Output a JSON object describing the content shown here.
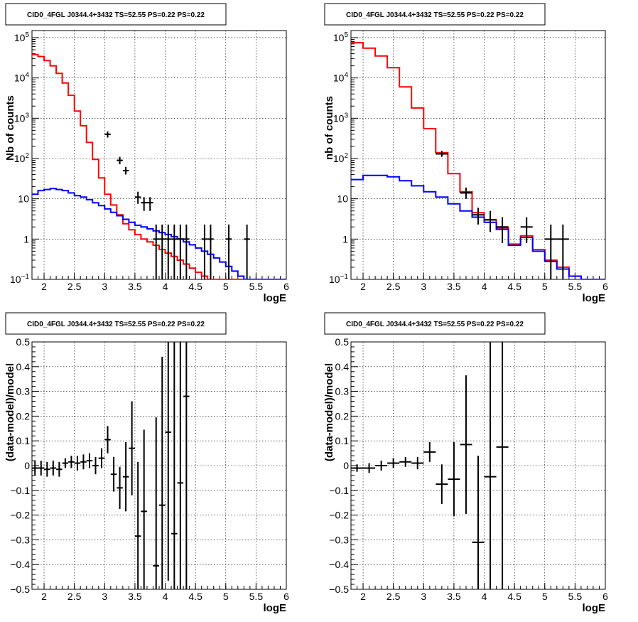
{
  "colors": {
    "data": "#000000",
    "total": "#ff0000",
    "model": "#0000ff",
    "grid": "#000000"
  },
  "chart_data": [
    {
      "type": "line",
      "title": "CID0_4FGL J0344.4+3432 TS=52.55 PS=0.22 PS=0.22",
      "xlabel": "logE",
      "ylabel": "Nb of counts",
      "xlim": [
        1.8,
        6
      ],
      "ylim": [
        0.1,
        150000
      ],
      "yscale": "log",
      "grid": true,
      "xticks": [
        "2",
        "2.5",
        "3",
        "3.5",
        "4",
        "4.5",
        "5",
        "5.5",
        "6"
      ],
      "yticks": [
        {
          "base": "10",
          "exp": "−1",
          "value": 0.1
        },
        {
          "base": "1",
          "exp": "",
          "value": 1
        },
        {
          "base": "10",
          "exp": "",
          "value": 10
        },
        {
          "base": "10",
          "exp": "2",
          "value": 100
        },
        {
          "base": "10",
          "exp": "3",
          "value": 1000
        },
        {
          "base": "10",
          "exp": "4",
          "value": 10000
        },
        {
          "base": "10",
          "exp": "5",
          "value": 100000
        }
      ],
      "series": [
        {
          "role": "model-total",
          "color": "red",
          "edges": [
            1.8,
            1.9,
            2.0,
            2.1,
            2.2,
            2.3,
            2.4,
            2.5,
            2.6,
            2.7,
            2.8,
            2.9,
            3.0,
            3.1,
            3.2,
            3.3,
            3.4,
            3.5,
            3.6,
            3.7,
            3.8,
            3.9,
            4.0,
            4.1,
            4.2,
            4.3,
            4.4,
            4.5,
            4.6,
            4.7,
            4.8,
            4.9,
            5.0,
            5.1,
            5.2,
            5.3,
            5.4,
            5.5,
            5.6,
            5.7,
            5.8,
            5.9,
            6.0
          ],
          "values": [
            38000,
            34000,
            27000,
            20000,
            13000,
            7500,
            3700,
            1500,
            650,
            250,
            95,
            33,
            13,
            7,
            4,
            2.4,
            1.7,
            1.3,
            1.0,
            0.85,
            0.7,
            0.55,
            0.45,
            0.37,
            0.3,
            0.24,
            0.19,
            0.15,
            0.12,
            0.1,
            0.1,
            0.1,
            0.1,
            0.1,
            0.1,
            0.1,
            0.1,
            0.1,
            0.1,
            0.1,
            0.1,
            0.1
          ]
        },
        {
          "role": "source-model",
          "color": "blue",
          "edges": [
            1.8,
            1.9,
            2.0,
            2.1,
            2.2,
            2.3,
            2.4,
            2.5,
            2.6,
            2.7,
            2.8,
            2.9,
            3.0,
            3.1,
            3.2,
            3.3,
            3.4,
            3.5,
            3.6,
            3.7,
            3.8,
            3.9,
            4.0,
            4.1,
            4.2,
            4.3,
            4.4,
            4.5,
            4.6,
            4.7,
            4.8,
            4.9,
            5.0,
            5.1,
            5.2,
            5.3,
            5.4,
            5.5,
            5.6,
            5.7,
            5.8,
            5.9,
            6.0
          ],
          "values": [
            13,
            16,
            17,
            18,
            17,
            16,
            14,
            12,
            11,
            9.5,
            8,
            6.8,
            5.6,
            4.6,
            3.8,
            3.1,
            2.6,
            2.2,
            2.0,
            1.8,
            1.6,
            1.45,
            1.3,
            1.15,
            1.0,
            0.85,
            0.72,
            0.6,
            0.5,
            0.42,
            0.34,
            0.27,
            0.21,
            0.16,
            0.12,
            0.1,
            0.1,
            0.1,
            0.1,
            0.1,
            0.1,
            0.1
          ]
        },
        {
          "role": "data",
          "color": "black",
          "points": [
            {
              "x": 3.05,
              "y": 400,
              "lo": 330,
              "hi": 470,
              "xerr": 0.05
            },
            {
              "x": 3.25,
              "y": 90,
              "lo": 72,
              "hi": 110,
              "xerr": 0.05
            },
            {
              "x": 3.35,
              "y": 50,
              "lo": 40,
              "hi": 62,
              "xerr": 0.05
            },
            {
              "x": 3.55,
              "y": 11,
              "lo": 7.5,
              "hi": 15,
              "xerr": 0.05
            },
            {
              "x": 3.65,
              "y": 8,
              "lo": 5,
              "hi": 11,
              "xerr": 0.05
            },
            {
              "x": 3.75,
              "y": 8,
              "lo": 5,
              "hi": 11,
              "xerr": 0.05
            },
            {
              "x": 3.85,
              "y": 1,
              "lo": 0.1,
              "hi": 2.3,
              "xerr": 0.05
            },
            {
              "x": 3.95,
              "y": 1,
              "lo": 0.1,
              "hi": 2.3,
              "xerr": 0.05
            },
            {
              "x": 4.05,
              "y": 1,
              "lo": 0.1,
              "hi": 2.3,
              "xerr": 0.05
            },
            {
              "x": 4.15,
              "y": 1,
              "lo": 0.1,
              "hi": 2.3,
              "xerr": 0.05
            },
            {
              "x": 4.25,
              "y": 1,
              "lo": 0.1,
              "hi": 2.3,
              "xerr": 0.05
            },
            {
              "x": 4.35,
              "y": 1,
              "lo": 0.1,
              "hi": 2.3,
              "xerr": 0.05
            },
            {
              "x": 4.65,
              "y": 1,
              "lo": 0.1,
              "hi": 2.3,
              "xerr": 0.05
            },
            {
              "x": 4.75,
              "y": 1,
              "lo": 0.1,
              "hi": 2.3,
              "xerr": 0.05
            },
            {
              "x": 5.05,
              "y": 1,
              "lo": 0.1,
              "hi": 2.3,
              "xerr": 0.05
            },
            {
              "x": 5.35,
              "y": 1,
              "lo": 0.1,
              "hi": 2.3,
              "xerr": 0.05
            }
          ]
        }
      ]
    },
    {
      "type": "line",
      "title": "CID0_4FGL J0344.4+3432 TS=52.55 PS=0.22 PS=0.22",
      "xlabel": "logE",
      "ylabel": "nb of counts",
      "xlim": [
        1.8,
        6
      ],
      "ylim": [
        0.1,
        150000
      ],
      "yscale": "log",
      "grid": true,
      "xticks": [
        "2",
        "2.5",
        "3",
        "3.5",
        "4",
        "4.5",
        "5",
        "5.5",
        "6"
      ],
      "yticks": [
        {
          "base": "10",
          "exp": "−1",
          "value": 0.1
        },
        {
          "base": "1",
          "exp": "",
          "value": 1
        },
        {
          "base": "10",
          "exp": "",
          "value": 10
        },
        {
          "base": "10",
          "exp": "2",
          "value": 100
        },
        {
          "base": "10",
          "exp": "3",
          "value": 1000
        },
        {
          "base": "10",
          "exp": "4",
          "value": 10000
        },
        {
          "base": "10",
          "exp": "5",
          "value": 100000
        }
      ],
      "series": [
        {
          "role": "model-total",
          "color": "red",
          "edges": [
            1.8,
            2.0,
            2.2,
            2.4,
            2.6,
            2.8,
            3.0,
            3.2,
            3.4,
            3.6,
            3.8,
            4.0,
            4.2,
            4.4,
            4.6,
            4.8,
            5.0,
            5.2,
            5.4,
            5.6,
            5.8,
            6.0
          ],
          "values": [
            75000,
            55000,
            35000,
            18000,
            6000,
            1800,
            550,
            140,
            42,
            15,
            4.5,
            3.0,
            1.9,
            0.75,
            1.2,
            0.55,
            0.3,
            0.2,
            0.12,
            0.1,
            0.1
          ]
        },
        {
          "role": "source-model",
          "color": "blue",
          "edges": [
            1.8,
            2.0,
            2.2,
            2.4,
            2.6,
            2.8,
            3.0,
            3.2,
            3.4,
            3.6,
            3.8,
            4.0,
            4.2,
            4.4,
            4.6,
            4.8,
            5.0,
            5.2,
            5.4,
            5.6,
            5.8,
            6.0
          ],
          "values": [
            30,
            38,
            38,
            35,
            28,
            21,
            15,
            11,
            7.5,
            5,
            3.5,
            2.6,
            1.75,
            0.7,
            1.1,
            0.5,
            0.28,
            0.18,
            0.12,
            0.1,
            0.1
          ]
        },
        {
          "role": "data",
          "color": "black",
          "points": [
            {
              "x": 3.3,
              "y": 130,
              "lo": 110,
              "hi": 155,
              "xerr": 0.1
            },
            {
              "x": 3.7,
              "y": 14,
              "lo": 10,
              "hi": 19,
              "xerr": 0.1
            },
            {
              "x": 3.9,
              "y": 4,
              "lo": 2.3,
              "hi": 6,
              "xerr": 0.1
            },
            {
              "x": 4.1,
              "y": 3,
              "lo": 1.5,
              "hi": 5,
              "xerr": 0.1
            },
            {
              "x": 4.3,
              "y": 2,
              "lo": 0.8,
              "hi": 3.5,
              "xerr": 0.1
            },
            {
              "x": 4.7,
              "y": 2,
              "lo": 0.8,
              "hi": 3.5,
              "xerr": 0.1
            },
            {
              "x": 5.1,
              "y": 1,
              "lo": 0.1,
              "hi": 2.3,
              "xerr": 0.1
            },
            {
              "x": 5.3,
              "y": 1,
              "lo": 0.1,
              "hi": 2.3,
              "xerr": 0.1
            }
          ]
        }
      ]
    },
    {
      "type": "scatter",
      "title": "CID0_4FGL J0344.4+3432 TS=52.55 PS=0.22 PS=0.22",
      "xlabel": "logE",
      "ylabel": "(data-model)/model",
      "xlim": [
        1.8,
        6
      ],
      "ylim": [
        -0.5,
        0.5
      ],
      "grid": true,
      "xticks": [
        "2",
        "2.5",
        "3",
        "3.5",
        "4",
        "4.5",
        "5",
        "5.5",
        "6"
      ],
      "yticks": [
        "−0.5",
        "−0.4",
        "−0.3",
        "−0.2",
        "−0.1",
        "0",
        "0.1",
        "0.2",
        "0.3",
        "0.4",
        "0.5"
      ],
      "points": [
        {
          "x": 1.85,
          "y": -0.01,
          "err": 0.03,
          "xerr": 0.05
        },
        {
          "x": 1.95,
          "y": -0.01,
          "err": 0.03,
          "xerr": 0.05
        },
        {
          "x": 2.05,
          "y": -0.015,
          "err": 0.03,
          "xerr": 0.05
        },
        {
          "x": 2.15,
          "y": -0.01,
          "err": 0.03,
          "xerr": 0.05
        },
        {
          "x": 2.25,
          "y": -0.015,
          "err": 0.03,
          "xerr": 0.05
        },
        {
          "x": 2.35,
          "y": 0.01,
          "err": 0.02,
          "xerr": 0.05
        },
        {
          "x": 2.45,
          "y": 0.015,
          "err": 0.025,
          "xerr": 0.05
        },
        {
          "x": 2.55,
          "y": 0.01,
          "err": 0.03,
          "xerr": 0.05
        },
        {
          "x": 2.65,
          "y": 0.015,
          "err": 0.03,
          "xerr": 0.05
        },
        {
          "x": 2.75,
          "y": 0.02,
          "err": 0.03,
          "xerr": 0.05
        },
        {
          "x": 2.85,
          "y": 0.0,
          "err": 0.035,
          "xerr": 0.05
        },
        {
          "x": 2.95,
          "y": 0.03,
          "err": 0.04,
          "xerr": 0.05
        },
        {
          "x": 3.05,
          "y": 0.105,
          "err": 0.055,
          "xerr": 0.05
        },
        {
          "x": 3.15,
          "y": -0.035,
          "err": 0.07,
          "xerr": 0.05
        },
        {
          "x": 3.25,
          "y": -0.09,
          "err": 0.085,
          "xerr": 0.05
        },
        {
          "x": 3.35,
          "y": -0.045,
          "err": 0.14,
          "xerr": 0.05
        },
        {
          "x": 3.45,
          "y": 0.07,
          "err": 0.19,
          "xerr": 0.05
        },
        {
          "x": 3.55,
          "y": -0.285,
          "err": 0.3,
          "xerr": 0.05
        },
        {
          "x": 3.65,
          "y": -0.185,
          "err": 0.33,
          "xerr": 0.05
        },
        {
          "x": 3.85,
          "y": -0.405,
          "err": 0.6,
          "xerr": 0.05
        },
        {
          "x": 3.95,
          "y": -0.16,
          "err": 0.6,
          "xerr": 0.05
        },
        {
          "x": 4.05,
          "y": 0.135,
          "err": 0.6,
          "xerr": 0.05
        },
        {
          "x": 4.15,
          "y": -0.275,
          "err": 0.8,
          "xerr": 0.05
        },
        {
          "x": 4.25,
          "y": -0.07,
          "err": 0.8,
          "xerr": 0.05
        },
        {
          "x": 4.35,
          "y": 0.28,
          "err": 0.8,
          "xerr": 0.05
        }
      ]
    },
    {
      "type": "scatter",
      "title": "CID0_4FGL J0344.4+3432 TS=52.55 PS=0.22 PS=0.22",
      "xlabel": "logE",
      "ylabel": "(data-model)/model",
      "xlim": [
        1.8,
        6
      ],
      "ylim": [
        -0.5,
        0.5
      ],
      "grid": true,
      "xticks": [
        "2",
        "2.5",
        "3",
        "3.5",
        "4",
        "4.5",
        "5",
        "5.5",
        "6"
      ],
      "yticks": [
        "−0.5",
        "−0.4",
        "−0.3",
        "−0.2",
        "−0.1",
        "0",
        "0.1",
        "0.2",
        "0.3",
        "0.4",
        "0.5"
      ],
      "points": [
        {
          "x": 1.9,
          "y": -0.01,
          "err": 0.015,
          "xerr": 0.1
        },
        {
          "x": 2.1,
          "y": -0.01,
          "err": 0.02,
          "xerr": 0.1
        },
        {
          "x": 2.3,
          "y": 0.0,
          "err": 0.02,
          "xerr": 0.1
        },
        {
          "x": 2.5,
          "y": 0.01,
          "err": 0.02,
          "xerr": 0.1
        },
        {
          "x": 2.7,
          "y": 0.015,
          "err": 0.02,
          "xerr": 0.1
        },
        {
          "x": 2.9,
          "y": 0.01,
          "err": 0.025,
          "xerr": 0.1
        },
        {
          "x": 3.1,
          "y": 0.055,
          "err": 0.04,
          "xerr": 0.1
        },
        {
          "x": 3.3,
          "y": -0.075,
          "err": 0.08,
          "xerr": 0.1
        },
        {
          "x": 3.5,
          "y": -0.055,
          "err": 0.15,
          "xerr": 0.1
        },
        {
          "x": 3.7,
          "y": 0.085,
          "err": 0.28,
          "xerr": 0.1
        },
        {
          "x": 3.9,
          "y": -0.31,
          "err": 0.35,
          "xerr": 0.1
        },
        {
          "x": 4.1,
          "y": -0.045,
          "err": 0.6,
          "xerr": 0.1
        },
        {
          "x": 4.3,
          "y": 0.075,
          "err": 0.9,
          "xerr": 0.1
        }
      ]
    }
  ]
}
